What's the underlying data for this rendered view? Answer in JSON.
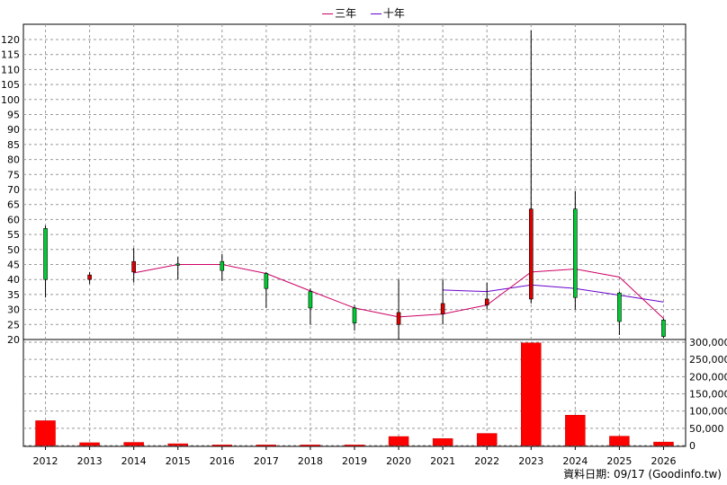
{
  "legend": [
    {
      "label": "三年",
      "color": "#cc0066"
    },
    {
      "label": "十年",
      "color": "#6600cc"
    }
  ],
  "footer": "資料日期: 09/17  (Goodinfo.tw)",
  "chart_data": {
    "type": "candlestick",
    "years": [
      "2012",
      "2013",
      "2014",
      "2015",
      "2016",
      "2017",
      "2018",
      "2019",
      "2020",
      "2021",
      "2022",
      "2023",
      "2024",
      "2025",
      "2026"
    ],
    "ohlc": [
      {
        "o": 40,
        "h": 58,
        "l": 34,
        "c": 57
      },
      {
        "o": 41.5,
        "h": 42.5,
        "l": 38.5,
        "c": 40
      },
      {
        "o": 46,
        "h": 50.5,
        "l": 39,
        "c": 42.5
      },
      {
        "o": 45,
        "h": 47.5,
        "l": 40,
        "c": 45.2
      },
      {
        "o": 43,
        "h": 48.5,
        "l": 39.5,
        "c": 46
      },
      {
        "o": 37,
        "h": 42.5,
        "l": 30.5,
        "c": 42
      },
      {
        "o": 30.5,
        "h": 37,
        "l": 25,
        "c": 36
      },
      {
        "o": 25.5,
        "h": 31.5,
        "l": 23,
        "c": 30.5
      },
      {
        "o": 29,
        "h": 40,
        "l": 20,
        "c": 25
      },
      {
        "o": 32,
        "h": 40,
        "l": 25,
        "c": 28.5
      },
      {
        "o": 33.5,
        "h": 39,
        "l": 30,
        "c": 31.5
      },
      {
        "o": 63.5,
        "h": 123,
        "l": 32,
        "c": 33.5
      },
      {
        "o": 34,
        "h": 69.5,
        "l": 30,
        "c": 63.5
      },
      {
        "o": 26,
        "h": 36,
        "l": 21.5,
        "c": 35.5
      },
      {
        "o": 21,
        "h": 27,
        "l": 20.5,
        "c": 26.5
      }
    ],
    "ma3": [
      null,
      null,
      42.2,
      45,
      45,
      42,
      36.2,
      30.5,
      27.5,
      28.5,
      31.5,
      42.5,
      43.5,
      40.8,
      27
    ],
    "ma10": [
      null,
      null,
      null,
      null,
      null,
      null,
      null,
      null,
      null,
      36.5,
      36,
      38.2,
      37,
      34.8,
      32.5
    ],
    "volume": [
      72000,
      8000,
      9000,
      5000,
      1500,
      1500,
      1500,
      1500,
      26000,
      20000,
      35000,
      298000,
      88000,
      27000,
      10000
    ],
    "price_axis": {
      "min": 20,
      "max": 120,
      "step": 5
    },
    "volume_axis": {
      "min": 0,
      "max": 300000,
      "step": 50000
    },
    "volume_tick_labels": [
      "0",
      "50,000",
      "100,000",
      "150,000",
      "200,000",
      "250,000",
      "300,000"
    ],
    "grid": true
  }
}
